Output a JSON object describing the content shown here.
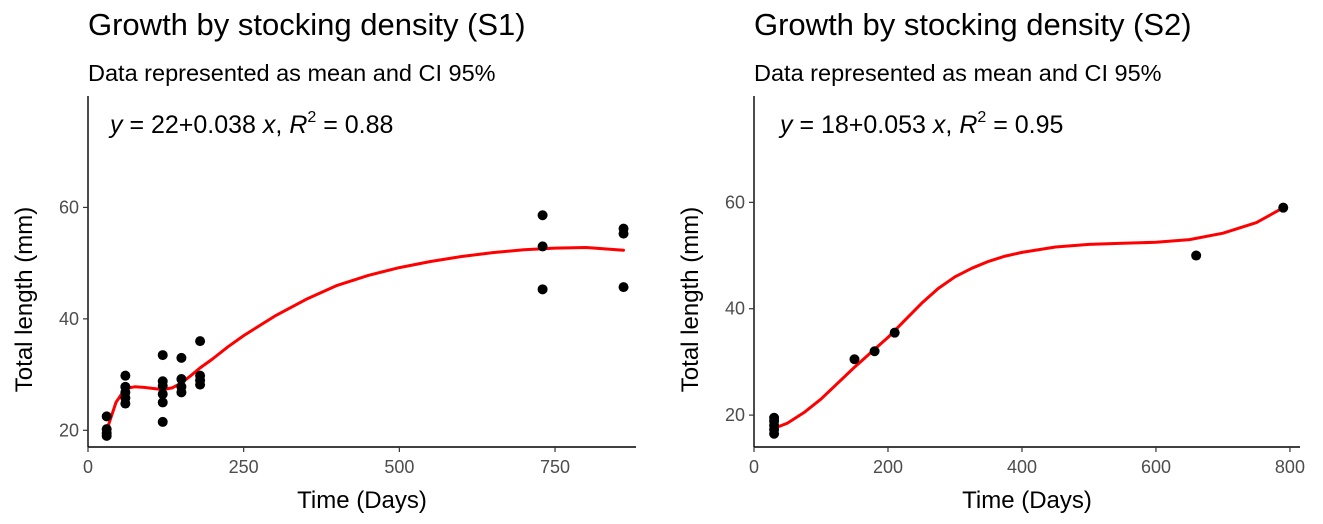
{
  "chart_data": [
    {
      "type": "scatter",
      "title": "Growth by stocking density (S1)",
      "subtitle": "Data represented as mean and CI 95%",
      "equation": {
        "intercept": "22",
        "slope": "0.038",
        "r2": "0.88"
      },
      "xlabel": "Time (Days)",
      "ylabel": "Total length (mm)",
      "xlim": [
        0,
        880
      ],
      "ylim": [
        17,
        80
      ],
      "xticks": [
        0,
        250,
        500,
        750
      ],
      "yticks": [
        20,
        40,
        60
      ],
      "grid": false,
      "points": [
        {
          "x": 30,
          "y": 19
        },
        {
          "x": 30,
          "y": 19.5
        },
        {
          "x": 30,
          "y": 20.2
        },
        {
          "x": 30,
          "y": 22.5
        },
        {
          "x": 60,
          "y": 24.8
        },
        {
          "x": 60,
          "y": 25.8
        },
        {
          "x": 60,
          "y": 26.8
        },
        {
          "x": 60,
          "y": 27.8
        },
        {
          "x": 60,
          "y": 29.8
        },
        {
          "x": 120,
          "y": 21.5
        },
        {
          "x": 120,
          "y": 25
        },
        {
          "x": 120,
          "y": 26.5
        },
        {
          "x": 120,
          "y": 28
        },
        {
          "x": 120,
          "y": 28.8
        },
        {
          "x": 120,
          "y": 33.5
        },
        {
          "x": 150,
          "y": 26.8
        },
        {
          "x": 150,
          "y": 27.8
        },
        {
          "x": 150,
          "y": 29.2
        },
        {
          "x": 150,
          "y": 33
        },
        {
          "x": 180,
          "y": 28.2
        },
        {
          "x": 180,
          "y": 29
        },
        {
          "x": 180,
          "y": 29.8
        },
        {
          "x": 180,
          "y": 36
        },
        {
          "x": 730,
          "y": 45.3
        },
        {
          "x": 730,
          "y": 53
        },
        {
          "x": 730,
          "y": 58.6
        },
        {
          "x": 860,
          "y": 45.7
        },
        {
          "x": 860,
          "y": 55.3
        },
        {
          "x": 860,
          "y": 56.2
        }
      ],
      "smooth": {
        "name": "",
        "color": "#ff0000",
        "x": [
          30,
          45,
          60,
          75,
          90,
          105,
          120,
          135,
          150,
          165,
          180,
          200,
          225,
          250,
          300,
          350,
          400,
          450,
          500,
          550,
          600,
          650,
          700,
          750,
          800,
          860
        ],
        "y": [
          20,
          25,
          27.5,
          27.8,
          27.7,
          27.5,
          27.3,
          27.6,
          28.5,
          29.8,
          31.2,
          32.8,
          35,
          37,
          40.5,
          43.5,
          46,
          47.8,
          49.2,
          50.3,
          51.2,
          51.9,
          52.4,
          52.7,
          52.8,
          52.3
        ]
      }
    },
    {
      "type": "scatter",
      "title": "Growth by stocking density (S2)",
      "subtitle": "Data represented as mean and CI 95%",
      "equation": {
        "intercept": "18",
        "slope": "0.053",
        "r2": "0.95"
      },
      "xlabel": "Time (Days)",
      "ylabel": "Total length (mm)",
      "xlim": [
        0,
        815
      ],
      "ylim": [
        14,
        80
      ],
      "xticks": [
        0,
        200,
        400,
        600,
        800
      ],
      "yticks": [
        20,
        40,
        60
      ],
      "grid": false,
      "points": [
        {
          "x": 30,
          "y": 16.5
        },
        {
          "x": 30,
          "y": 17.3
        },
        {
          "x": 30,
          "y": 18.1
        },
        {
          "x": 30,
          "y": 18.9
        },
        {
          "x": 30,
          "y": 19.5
        },
        {
          "x": 150,
          "y": 30.5
        },
        {
          "x": 180,
          "y": 32
        },
        {
          "x": 210,
          "y": 35.5
        },
        {
          "x": 660,
          "y": 50
        },
        {
          "x": 790,
          "y": 59
        }
      ],
      "smooth": {
        "name": "",
        "color": "#ff0000",
        "x": [
          30,
          50,
          75,
          100,
          125,
          150,
          175,
          200,
          225,
          250,
          275,
          300,
          325,
          350,
          375,
          400,
          450,
          500,
          550,
          600,
          650,
          700,
          750,
          790
        ],
        "y": [
          17.5,
          18.5,
          20.5,
          23,
          26,
          29,
          31.8,
          34.6,
          37.8,
          41,
          43.8,
          46,
          47.6,
          48.9,
          49.9,
          50.6,
          51.6,
          52.1,
          52.3,
          52.5,
          53,
          54.2,
          56.2,
          59
        ]
      }
    }
  ]
}
